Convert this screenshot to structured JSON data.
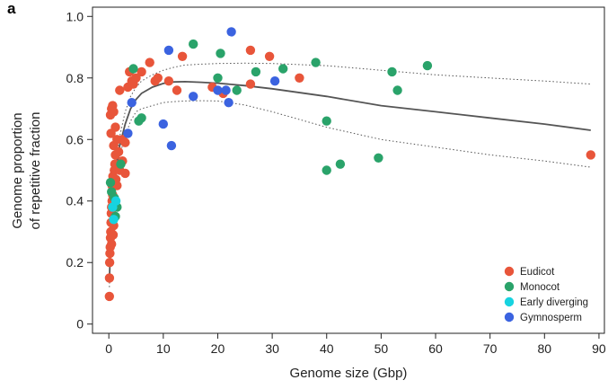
{
  "panel_label": "a",
  "chart_data": {
    "type": "scatter",
    "title": "",
    "xlabel": "Genome size (Gbp)",
    "ylabel": [
      "Genome proportion",
      "of repetitive fraction"
    ],
    "xlim": [
      -3,
      91
    ],
    "ylim": [
      -0.03,
      1.03
    ],
    "xticks": [
      0,
      10,
      20,
      30,
      40,
      50,
      60,
      70,
      80,
      90
    ],
    "yticks": [
      0,
      0.2,
      0.4,
      0.6,
      0.8,
      1.0
    ],
    "ytick_labels": [
      "0",
      "0.2",
      "0.4",
      "0.6",
      "0.8",
      "1.0"
    ],
    "grid": false,
    "legend_position": "bottom-right",
    "series": [
      {
        "name": "Eudicot",
        "color": "#e8553a",
        "points": [
          [
            0.1,
            0.09
          ],
          [
            0.12,
            0.15
          ],
          [
            0.15,
            0.2
          ],
          [
            0.2,
            0.23
          ],
          [
            0.25,
            0.25
          ],
          [
            0.3,
            0.28
          ],
          [
            0.35,
            0.3
          ],
          [
            0.4,
            0.33
          ],
          [
            0.45,
            0.36
          ],
          [
            0.5,
            0.38
          ],
          [
            0.6,
            0.4
          ],
          [
            0.7,
            0.42
          ],
          [
            0.5,
            0.26
          ],
          [
            0.8,
            0.29
          ],
          [
            0.9,
            0.32
          ],
          [
            0.6,
            0.45
          ],
          [
            0.75,
            0.48
          ],
          [
            1.0,
            0.5
          ],
          [
            1.1,
            0.52
          ],
          [
            1.2,
            0.55
          ],
          [
            0.9,
            0.58
          ],
          [
            1.3,
            0.47
          ],
          [
            1.5,
            0.6
          ],
          [
            0.3,
            0.68
          ],
          [
            0.5,
            0.7
          ],
          [
            0.7,
            0.71
          ],
          [
            0.9,
            0.69
          ],
          [
            1.2,
            0.64
          ],
          [
            1.5,
            0.45
          ],
          [
            2.0,
            0.5
          ],
          [
            2.5,
            0.53
          ],
          [
            3.0,
            0.49
          ],
          [
            2.5,
            0.6
          ],
          [
            3.0,
            0.59
          ],
          [
            2.0,
            0.76
          ],
          [
            3.5,
            0.77
          ],
          [
            3.8,
            0.82
          ],
          [
            4.2,
            0.79
          ],
          [
            4.5,
            0.78
          ],
          [
            5.0,
            0.8
          ],
          [
            6.0,
            0.82
          ],
          [
            7.5,
            0.85
          ],
          [
            8.5,
            0.79
          ],
          [
            9.0,
            0.8
          ],
          [
            11.0,
            0.79
          ],
          [
            12.5,
            0.76
          ],
          [
            13.5,
            0.87
          ],
          [
            19.0,
            0.77
          ],
          [
            21.0,
            0.75
          ],
          [
            26.0,
            0.89
          ],
          [
            26.0,
            0.78
          ],
          [
            29.5,
            0.87
          ],
          [
            35.0,
            0.8
          ],
          [
            88.5,
            0.55
          ],
          [
            1.0,
            0.38
          ],
          [
            1.8,
            0.56
          ],
          [
            0.4,
            0.62
          ]
        ]
      },
      {
        "name": "Monocot",
        "color": "#2aa36a",
        "points": [
          [
            0.3,
            0.46
          ],
          [
            0.5,
            0.43
          ],
          [
            1.0,
            0.41
          ],
          [
            1.5,
            0.38
          ],
          [
            1.2,
            0.35
          ],
          [
            2.2,
            0.52
          ],
          [
            4.5,
            0.83
          ],
          [
            5.5,
            0.66
          ],
          [
            6.0,
            0.67
          ],
          [
            15.5,
            0.91
          ],
          [
            20.0,
            0.8
          ],
          [
            20.5,
            0.88
          ],
          [
            23.5,
            0.76
          ],
          [
            27.0,
            0.82
          ],
          [
            32.0,
            0.83
          ],
          [
            38.0,
            0.85
          ],
          [
            40.0,
            0.66
          ],
          [
            40.0,
            0.5
          ],
          [
            42.5,
            0.52
          ],
          [
            49.5,
            0.54
          ],
          [
            52.0,
            0.82
          ],
          [
            53.0,
            0.76
          ],
          [
            58.5,
            0.84
          ]
        ]
      },
      {
        "name": "Early diverging",
        "color": "#17d3e0",
        "points": [
          [
            0.7,
            0.38
          ],
          [
            1.3,
            0.4
          ],
          [
            0.9,
            0.34
          ]
        ]
      },
      {
        "name": "Gymnosperm",
        "color": "#3b63e0",
        "points": [
          [
            3.5,
            0.62
          ],
          [
            4.2,
            0.72
          ],
          [
            10.0,
            0.65
          ],
          [
            11.0,
            0.89
          ],
          [
            11.5,
            0.58
          ],
          [
            15.5,
            0.74
          ],
          [
            20.0,
            0.76
          ],
          [
            21.5,
            0.76
          ],
          [
            22.0,
            0.72
          ],
          [
            22.5,
            0.95
          ],
          [
            30.5,
            0.79
          ]
        ]
      }
    ],
    "fit": {
      "name": "fit",
      "color": "#555555",
      "x": [
        0.1,
        0.3,
        0.6,
        1,
        1.5,
        2,
        3,
        4,
        5,
        6,
        8,
        10,
        12,
        14,
        17,
        20,
        25,
        30,
        40,
        50,
        60,
        70,
        80,
        88.5
      ],
      "y": [
        0.14,
        0.25,
        0.35,
        0.45,
        0.52,
        0.58,
        0.65,
        0.7,
        0.73,
        0.75,
        0.77,
        0.782,
        0.787,
        0.788,
        0.786,
        0.783,
        0.775,
        0.765,
        0.74,
        0.71,
        0.69,
        0.67,
        0.65,
        0.63
      ]
    },
    "ci_upper": {
      "x": [
        0.1,
        0.3,
        0.6,
        1,
        1.5,
        2,
        3,
        4,
        5,
        6,
        8,
        10,
        12,
        14,
        17,
        20,
        25,
        30,
        40,
        50,
        60,
        70,
        80,
        88.5
      ],
      "y": [
        0.16,
        0.27,
        0.37,
        0.47,
        0.55,
        0.61,
        0.69,
        0.74,
        0.77,
        0.79,
        0.81,
        0.825,
        0.835,
        0.842,
        0.845,
        0.847,
        0.848,
        0.847,
        0.84,
        0.825,
        0.81,
        0.8,
        0.79,
        0.78
      ]
    },
    "ci_lower": {
      "x": [
        0.1,
        0.3,
        0.6,
        1,
        1.5,
        2,
        3,
        4,
        5,
        6,
        8,
        10,
        12,
        14,
        17,
        20,
        25,
        30,
        40,
        50,
        60,
        70,
        80,
        88.5
      ],
      "y": [
        0.12,
        0.23,
        0.33,
        0.43,
        0.49,
        0.55,
        0.61,
        0.66,
        0.69,
        0.7,
        0.71,
        0.72,
        0.723,
        0.725,
        0.726,
        0.725,
        0.712,
        0.69,
        0.64,
        0.6,
        0.575,
        0.55,
        0.53,
        0.51
      ]
    }
  }
}
